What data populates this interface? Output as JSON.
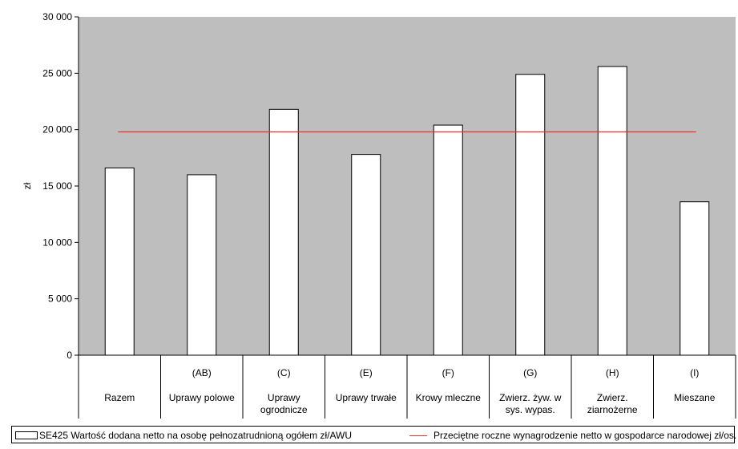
{
  "chart_data": {
    "type": "bar",
    "ylabel": "zł",
    "ylim": [
      0,
      30000
    ],
    "yticks": [
      0,
      5000,
      10000,
      15000,
      20000,
      25000,
      30000
    ],
    "ytick_labels": [
      "0",
      "5 000",
      "10 000",
      "15 000",
      "20 000",
      "25 000",
      "30 000"
    ],
    "categories": [
      {
        "code": "",
        "name": [
          "Razem"
        ]
      },
      {
        "code": "(AB)",
        "name": [
          "Uprawy polowe"
        ]
      },
      {
        "code": "(C)",
        "name": [
          "Uprawy",
          "ogrodnicze"
        ]
      },
      {
        "code": "(E)",
        "name": [
          "Uprawy trwałe"
        ]
      },
      {
        "code": "(F)",
        "name": [
          "Krowy mleczne"
        ]
      },
      {
        "code": "(G)",
        "name": [
          "Zwierz. żyw. w",
          "sys. wypas."
        ]
      },
      {
        "code": "(H)",
        "name": [
          "Zwierz.",
          "ziarnożerne"
        ]
      },
      {
        "code": "(I)",
        "name": [
          "Mieszane"
        ]
      }
    ],
    "series": [
      {
        "name": "SE425 Wartość dodana netto na osobę pełnozatrudnioną ogółem zł/AWU",
        "values": [
          16600,
          16000,
          21800,
          17800,
          20400,
          24900,
          25600,
          13600
        ]
      }
    ],
    "reference_line": {
      "name": "Przeciętne roczne wynagrodzenie netto w gospodarce narodowej zł/os.",
      "value": 19800
    },
    "grid": false,
    "legend_position": "bottom",
    "colors": {
      "plot_background": "#bebebe",
      "bar_fill": "#ffffff",
      "bar_stroke": "#000000",
      "reference_line": "#e8302a"
    }
  }
}
